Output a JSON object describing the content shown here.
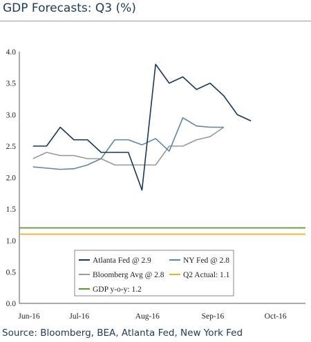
{
  "header": {
    "title": "GDP Forecasts: Q3 (%)"
  },
  "footer": {
    "source": "Source: Bloomberg, BEA, Atlanta Fed, New York Fed"
  },
  "chart_data": {
    "type": "line",
    "title": "GDP Forecasts: Q3 (%)",
    "xlabel": "",
    "ylabel": "",
    "ylim": [
      0,
      4
    ],
    "yticks": [
      "0.0",
      "0.5",
      "1.0",
      "1.5",
      "2.0",
      "2.5",
      "3.0",
      "3.5",
      "4.0"
    ],
    "xticks": [
      "Jun-16",
      "Jul-16",
      "Aug-16",
      "Sep-16",
      "Oct-16"
    ],
    "grid": false,
    "legend_position": "bottom-center",
    "series": [
      {
        "name": "Atlanta Fed @ 2.9",
        "color": "#17365d",
        "x": [
          0,
          1,
          2,
          3,
          4,
          5,
          6,
          7,
          8,
          9,
          10,
          11,
          12,
          13,
          14,
          15,
          16
        ],
        "values": [
          2.5,
          2.5,
          2.8,
          2.6,
          2.6,
          2.4,
          2.4,
          2.4,
          1.8,
          3.8,
          3.5,
          3.6,
          3.4,
          3.5,
          3.3,
          3.0,
          2.9
        ]
      },
      {
        "name": "NY Fed @ 2.8",
        "color": "#5a86a8",
        "x": [
          0,
          2,
          3,
          4,
          5,
          6,
          7,
          8,
          9,
          10,
          11,
          12,
          13,
          14
        ],
        "values": [
          2.17,
          2.13,
          2.14,
          2.2,
          2.3,
          2.6,
          2.6,
          2.52,
          2.62,
          2.42,
          2.95,
          2.82,
          2.8,
          2.8
        ]
      },
      {
        "name": "Bloomberg Avg @ 2.8",
        "color": "#9a9a9a",
        "x": [
          0,
          1,
          2,
          3,
          4,
          5,
          6,
          7,
          8,
          9,
          10,
          11,
          12,
          13,
          14
        ],
        "values": [
          2.3,
          2.4,
          2.35,
          2.35,
          2.3,
          2.3,
          2.2,
          2.2,
          2.2,
          2.2,
          2.5,
          2.5,
          2.6,
          2.65,
          2.8
        ]
      },
      {
        "name": "Q2 Actual: 1.1",
        "color": "#f2b01e",
        "x": [
          -1,
          20
        ],
        "values": [
          1.1,
          1.1
        ]
      },
      {
        "name": "GDP y-o-y: 1.2",
        "color": "#5a9a2a",
        "x": [
          -1,
          20
        ],
        "values": [
          1.2,
          1.2
        ]
      }
    ]
  }
}
